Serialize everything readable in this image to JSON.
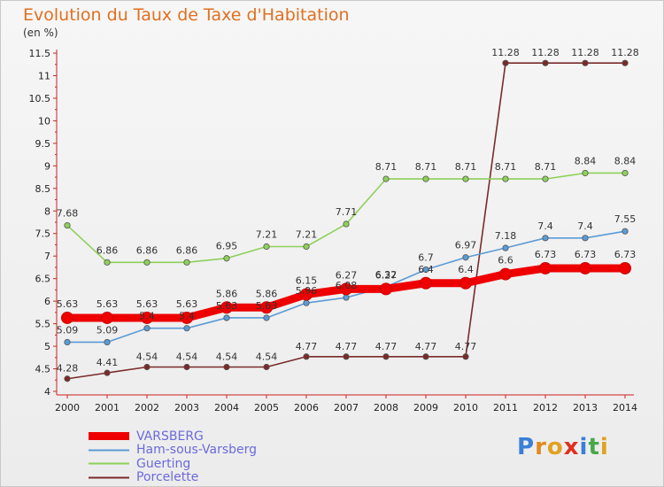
{
  "header": {
    "title": "Evolution du Taux de Taxe d'Habitation",
    "subtitle": "(en %)"
  },
  "logo": {
    "text": "Proxiti",
    "letters": [
      "P",
      "r",
      "o",
      "x",
      "i",
      "t",
      "i"
    ],
    "colors": [
      "#3a7fd8",
      "#e08a1e",
      "#e0a21e",
      "#e03020",
      "#3a7fd8",
      "#48a848",
      "#e0a21e"
    ]
  },
  "chart_data": {
    "type": "line",
    "x": [
      "2000",
      "2001",
      "2002",
      "2003",
      "2004",
      "2005",
      "2006",
      "2007",
      "2008",
      "2009",
      "2010",
      "2011",
      "2012",
      "2013",
      "2014"
    ],
    "yticks": [
      "4",
      "4.5",
      "5",
      "5.5",
      "6",
      "6.5",
      "7",
      "7.5",
      "8",
      "8.5",
      "9",
      "9.5",
      "10",
      "10.5",
      "11",
      "11.5"
    ],
    "ylim": [
      4,
      11.5
    ],
    "grid": false,
    "legend": "bottom-left",
    "series": [
      {
        "name": "VARSBERG",
        "color": "#ee0000",
        "values": [
          5.63,
          5.63,
          5.63,
          5.63,
          5.86,
          5.86,
          6.15,
          6.27,
          6.27,
          6.4,
          6.4,
          6.6,
          6.73,
          6.73,
          6.73
        ],
        "labels": [
          "5.63",
          "5.63",
          "5.63",
          "5.63",
          "5.86",
          "5.86",
          "6.15",
          "6.27",
          "6.27",
          "6.4",
          "6.4",
          "6.6",
          "6.73",
          "6.73",
          "6.73"
        ]
      },
      {
        "name": "Ham-sous-Varsberg",
        "color": "#5b9bd5",
        "values": [
          5.09,
          5.09,
          5.4,
          5.4,
          5.63,
          5.63,
          5.96,
          6.08,
          6.32,
          6.7,
          6.97,
          7.18,
          7.4,
          7.4,
          7.55
        ],
        "labels": [
          "5.09",
          "5.09",
          "5.4",
          "5.4",
          "5.63",
          "5.63",
          "5.96",
          "6.08",
          "6.32",
          "6.7",
          "6.97",
          "7.18",
          "7.4",
          "7.4",
          "7.55"
        ]
      },
      {
        "name": "Guerting",
        "color": "#8ed05a",
        "values": [
          7.68,
          6.86,
          6.86,
          6.86,
          6.95,
          7.21,
          7.21,
          7.71,
          8.71,
          8.71,
          8.71,
          8.71,
          8.71,
          8.84,
          8.84
        ],
        "labels": [
          "7.68",
          "6.86",
          "6.86",
          "6.86",
          "6.95",
          "7.21",
          "7.21",
          "7.71",
          "8.71",
          "8.71",
          "8.71",
          "8.71",
          "8.71",
          "8.84",
          "8.84"
        ]
      },
      {
        "name": "Porcelette",
        "color": "#7a2a2a",
        "values": [
          4.28,
          4.41,
          4.54,
          4.54,
          4.54,
          4.54,
          4.77,
          4.77,
          4.77,
          4.77,
          4.77,
          11.28,
          11.28,
          11.28,
          11.28
        ],
        "labels": [
          "4.28",
          "4.41",
          "4.54",
          "4.54",
          "4.54",
          "4.54",
          "4.77",
          "4.77",
          "4.77",
          "4.77",
          "4.77",
          "11.28",
          "11.28",
          "11.28",
          "11.28"
        ]
      }
    ]
  }
}
